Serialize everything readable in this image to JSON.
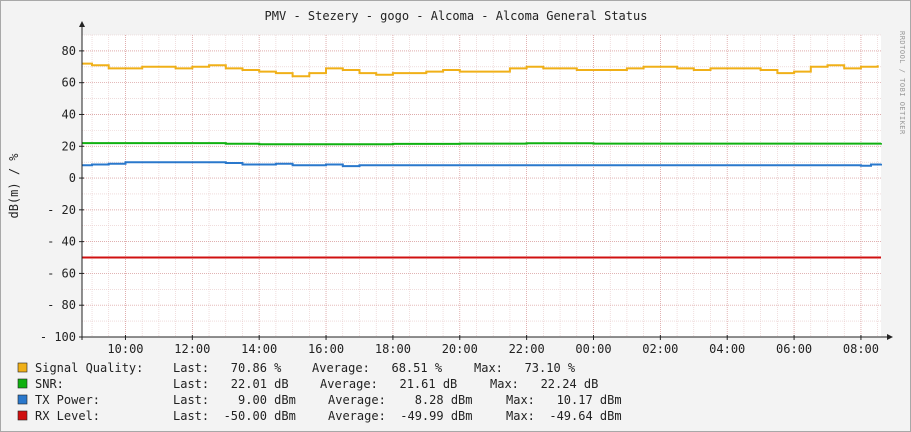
{
  "chart_data": {
    "type": "line",
    "title": "PMV - Stezery - gogo - Alcoma - Alcoma General Status",
    "ylabel": "dB(m) / %",
    "watermark": "RRDTOOL / TOBI OETIKER",
    "ylim": [
      -100,
      90
    ],
    "yticks": [
      80,
      60,
      40,
      20,
      0,
      -20,
      -40,
      -60,
      -80,
      -100
    ],
    "ytick_labels": [
      "80",
      "60",
      "40",
      "20",
      "0",
      "- 20",
      "- 40",
      "- 60",
      "- 80",
      "- 100"
    ],
    "x_range_hours": [
      8.7,
      32.6
    ],
    "xticks": [
      10,
      12,
      14,
      16,
      18,
      20,
      22,
      24,
      26,
      28,
      30,
      32
    ],
    "xtick_labels": [
      "10:00",
      "12:00",
      "14:00",
      "16:00",
      "18:00",
      "20:00",
      "22:00",
      "00:00",
      "02:00",
      "04:00",
      "06:00",
      "08:00"
    ],
    "grid": true,
    "legend_position": "bottom",
    "series": [
      {
        "name": "Signal Quality:",
        "color": "#f0b018",
        "legend": {
          "last": "Last:   70.86 %",
          "avg": "Average:   68.51 %",
          "max": "Max:   73.10 %"
        },
        "x": [
          8.7,
          9.0,
          9.5,
          10.0,
          10.5,
          11.0,
          11.5,
          12.0,
          12.5,
          13.0,
          13.5,
          14.0,
          14.5,
          15.0,
          15.5,
          16.0,
          16.5,
          17.0,
          17.5,
          18.0,
          18.5,
          19.0,
          19.5,
          20.0,
          20.5,
          21.0,
          21.5,
          22.0,
          22.5,
          23.0,
          23.5,
          24.0,
          24.5,
          25.0,
          25.5,
          26.0,
          26.5,
          27.0,
          27.5,
          28.0,
          28.5,
          29.0,
          29.5,
          30.0,
          30.5,
          31.0,
          31.5,
          32.0,
          32.5
        ],
        "values": [
          72,
          71,
          69,
          69,
          70,
          70,
          69,
          70,
          71,
          69,
          68,
          67,
          66,
          64,
          66,
          69,
          68,
          66,
          65,
          66,
          66,
          67,
          68,
          67,
          67,
          67,
          69,
          70,
          69,
          69,
          68,
          68,
          68,
          69,
          70,
          70,
          69,
          68,
          69,
          69,
          69,
          68,
          66,
          67,
          70,
          71,
          69,
          70,
          71
        ]
      },
      {
        "name": "SNR:",
        "color": "#10b010",
        "legend": {
          "last": "Last:   22.01 dB",
          "avg": "Average:   21.61 dB",
          "max": "Max:   22.24 dB"
        },
        "x": [
          8.7,
          10.0,
          12.0,
          13.0,
          14.0,
          16.0,
          18.0,
          20.0,
          22.0,
          24.0,
          26.0,
          28.0,
          30.0,
          32.6
        ],
        "values": [
          22,
          22,
          22,
          21.6,
          21.3,
          21.3,
          21.5,
          21.7,
          21.9,
          21.7,
          21.7,
          21.7,
          21.7,
          22
        ]
      },
      {
        "name": "TX Power:",
        "color": "#2a78cc",
        "legend": {
          "last": "Last:    9.00 dBm",
          "avg": "Average:    8.28 dBm",
          "max": "Max:   10.17 dBm"
        },
        "x": [
          8.7,
          9.0,
          9.5,
          10.0,
          12.0,
          13.0,
          13.5,
          14.0,
          14.5,
          15.0,
          15.5,
          16.0,
          16.5,
          17.0,
          18.0,
          20.0,
          22.0,
          24.0,
          26.0,
          28.0,
          30.0,
          32.0,
          32.3,
          32.6
        ],
        "values": [
          8,
          8.5,
          9,
          10,
          10,
          9.5,
          8.5,
          8.5,
          9,
          8,
          8,
          8.5,
          7.5,
          8,
          8,
          8,
          8,
          8,
          8,
          8,
          8,
          7.8,
          8.5,
          9
        ]
      },
      {
        "name": "RX Level:",
        "color": "#d01010",
        "legend": {
          "last": "Last:  -50.00 dBm",
          "avg": "Average:  -49.99 dBm",
          "max": "Max:  -49.64 dBm"
        },
        "x": [
          8.7,
          12.0,
          16.0,
          20.0,
          24.0,
          28.0,
          32.6
        ],
        "values": [
          -50,
          -50,
          -50,
          -50,
          -50,
          -50,
          -50
        ]
      }
    ]
  }
}
